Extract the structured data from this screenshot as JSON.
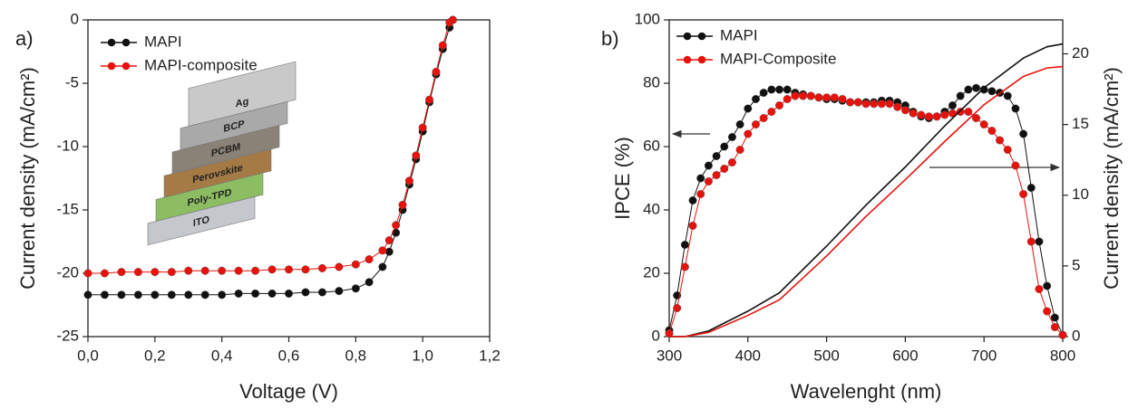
{
  "chart_data": [
    {
      "type": "line",
      "panel_label": "a)",
      "xlabel": "Voltage (V)",
      "ylabel": "Current density (mA/cm²)",
      "xlim": [
        0,
        1.2
      ],
      "ylim": [
        -25,
        0
      ],
      "xticks": [
        {
          "value": 0,
          "label": "0,0"
        },
        {
          "value": 0.2,
          "label": "0,2"
        },
        {
          "value": 0.4,
          "label": "0,4"
        },
        {
          "value": 0.6,
          "label": "0,6"
        },
        {
          "value": 0.8,
          "label": "0,8"
        },
        {
          "value": 1.0,
          "label": "1,0"
        },
        {
          "value": 1.2,
          "label": "1,2"
        }
      ],
      "yticks": [
        -25,
        -20,
        -15,
        -10,
        -5,
        0
      ],
      "legend": "upper left",
      "x": [
        0,
        0.05,
        0.1,
        0.15,
        0.2,
        0.25,
        0.3,
        0.35,
        0.4,
        0.45,
        0.5,
        0.55,
        0.6,
        0.65,
        0.7,
        0.75,
        0.8,
        0.84,
        0.88,
        0.9,
        0.92,
        0.94,
        0.96,
        0.98,
        1.0,
        1.02,
        1.04,
        1.06,
        1.08,
        1.09
      ],
      "series": [
        {
          "name": "MAPI",
          "color": "#111111",
          "markers": true,
          "values": [
            -21.7,
            -21.7,
            -21.7,
            -21.7,
            -21.7,
            -21.7,
            -21.7,
            -21.7,
            -21.7,
            -21.6,
            -21.6,
            -21.6,
            -21.6,
            -21.5,
            -21.5,
            -21.4,
            -21.2,
            -20.7,
            -19.5,
            -18.3,
            -16.8,
            -15.0,
            -13.0,
            -11.0,
            -8.8,
            -6.5,
            -4.3,
            -2.3,
            -0.6,
            0
          ]
        },
        {
          "name": "MAPI-composite",
          "color": "#e8120c",
          "markers": true,
          "values": [
            -20.0,
            -20.0,
            -19.9,
            -19.9,
            -19.9,
            -19.9,
            -19.8,
            -19.8,
            -19.8,
            -19.8,
            -19.8,
            -19.7,
            -19.7,
            -19.7,
            -19.6,
            -19.5,
            -19.3,
            -18.9,
            -18.2,
            -17.4,
            -16.2,
            -14.6,
            -12.7,
            -10.7,
            -8.5,
            -6.3,
            -4.1,
            -2.0,
            -0.2,
            0
          ]
        }
      ],
      "inset_layers": [
        "Ag",
        "BCP",
        "PCBM",
        "Perovskite",
        "Poly-TPD",
        "ITO"
      ]
    },
    {
      "type": "line",
      "panel_label": "b)",
      "xlabel": "Wavelenght (nm)",
      "ylabel": "IPCE (%)",
      "y2label": "Current density (mA/cm²)",
      "xlim": [
        300,
        800
      ],
      "ylim": [
        0,
        100
      ],
      "y2lim": [
        0,
        22.4
      ],
      "xticks": [
        300,
        400,
        500,
        600,
        700,
        800
      ],
      "yticks": [
        0,
        20,
        40,
        60,
        80,
        100
      ],
      "y2ticks": [
        0,
        5,
        10,
        15,
        20
      ],
      "legend": "upper left",
      "series": [
        {
          "name": "MAPI",
          "color": "#111111",
          "markers": true,
          "x": [
            300,
            310,
            320,
            330,
            340,
            350,
            360,
            370,
            380,
            390,
            400,
            410,
            420,
            430,
            440,
            450,
            460,
            470,
            480,
            490,
            500,
            510,
            520,
            530,
            540,
            550,
            560,
            570,
            580,
            590,
            600,
            610,
            620,
            630,
            640,
            650,
            660,
            670,
            680,
            690,
            700,
            710,
            720,
            730,
            740,
            750,
            760,
            770,
            780,
            790,
            800
          ],
          "values": [
            2,
            13,
            29,
            43,
            50,
            54,
            57,
            60,
            63,
            67,
            72,
            75,
            77,
            78,
            78,
            78,
            77,
            76.5,
            76,
            75.5,
            75,
            75,
            74.5,
            74,
            74,
            74,
            74,
            74.5,
            74.5,
            74,
            73,
            71,
            69.5,
            69,
            69.5,
            71,
            73,
            76,
            78,
            78.5,
            78,
            77.5,
            77,
            76,
            72,
            64,
            47,
            30,
            16,
            6,
            0.5
          ]
        },
        {
          "name": "MAPI-Composite",
          "color": "#e8120c",
          "markers": true,
          "x": [
            300,
            310,
            320,
            330,
            340,
            350,
            360,
            370,
            380,
            390,
            400,
            410,
            420,
            430,
            440,
            450,
            460,
            470,
            480,
            490,
            500,
            510,
            520,
            530,
            540,
            550,
            560,
            570,
            580,
            590,
            600,
            610,
            620,
            630,
            640,
            650,
            660,
            670,
            680,
            690,
            700,
            710,
            720,
            730,
            740,
            750,
            760,
            770,
            780,
            790,
            800
          ],
          "values": [
            1,
            9,
            22,
            35,
            45,
            49,
            51,
            53,
            55,
            59,
            64,
            67,
            69,
            71,
            73,
            75,
            76,
            76,
            76,
            75.5,
            75.5,
            75.5,
            75,
            74,
            74,
            73.5,
            73.5,
            73.5,
            73.5,
            72.5,
            71.5,
            70.5,
            70,
            69.5,
            69.5,
            70,
            70.5,
            71,
            71,
            69,
            67,
            65,
            62,
            59,
            54,
            45,
            30,
            15,
            8,
            3,
            0.5
          ]
        },
        {
          "color": "#111111",
          "markers": false,
          "axis": "y2",
          "x": [
            300,
            320,
            350,
            400,
            440,
            500,
            550,
            600,
            650,
            700,
            750,
            780,
            800
          ],
          "values": [
            0,
            0,
            0.4,
            1.8,
            3.1,
            6.4,
            9.3,
            12.0,
            14.9,
            17.6,
            19.7,
            20.5,
            20.7
          ]
        },
        {
          "color": "#e8120c",
          "markers": false,
          "axis": "y2",
          "x": [
            300,
            320,
            350,
            400,
            440,
            500,
            550,
            600,
            650,
            700,
            750,
            780,
            800
          ],
          "values": [
            0,
            0,
            0.3,
            1.5,
            2.6,
            5.7,
            8.5,
            11.1,
            13.8,
            16.4,
            18.4,
            19.0,
            19.1
          ]
        }
      ]
    }
  ]
}
